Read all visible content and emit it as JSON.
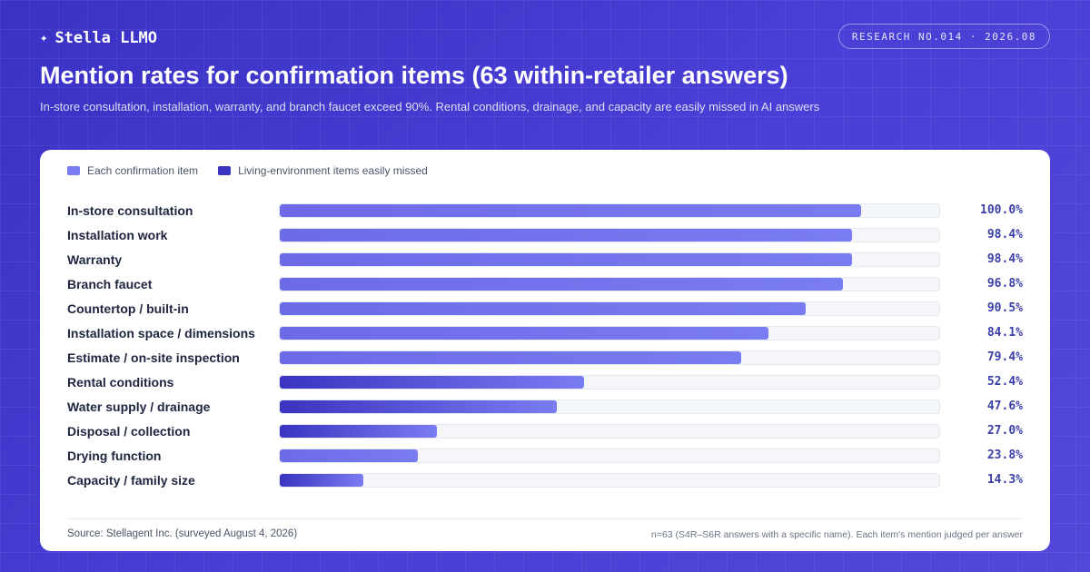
{
  "brand": {
    "spark": "✦",
    "name": "Stella LLMO"
  },
  "badge": "RESEARCH NO.014 · 2026.08",
  "title": "Mention rates for confirmation items (63 within-retailer answers)",
  "subtitle": "In-store consultation, installation, warranty, and branch faucet exceed 90%. Rental conditions, drainage, and capacity are easily missed in AI answers",
  "colors": {
    "normal": "#7a7cf2",
    "missed": "#3a34c0",
    "value_text": "#3a3fa8"
  },
  "legend": [
    {
      "label": "Each confirmation item",
      "color": "#7a7cf2"
    },
    {
      "label": "Living-environment items easily missed",
      "color": "#3a34c0"
    }
  ],
  "chart_data": {
    "type": "bar",
    "orientation": "horizontal",
    "xlim": [
      0,
      113.75
    ],
    "grid": false,
    "legend_position": "top-left",
    "categories": [
      "In-store consultation",
      "Installation work",
      "Warranty",
      "Branch faucet",
      "Countertop / built-in",
      "Installation space / dimensions",
      "Estimate / on-site inspection",
      "Rental conditions",
      "Water supply / drainage",
      "Disposal / collection",
      "Drying function",
      "Capacity / family size"
    ],
    "values": [
      100.0,
      98.4,
      98.4,
      96.8,
      90.5,
      84.1,
      79.4,
      52.4,
      47.6,
      27.0,
      23.8,
      14.3
    ],
    "value_labels": [
      "100.0%",
      "98.4%",
      "98.4%",
      "96.8%",
      "90.5%",
      "84.1%",
      "79.4%",
      "52.4%",
      "47.6%",
      "27.0%",
      "23.8%",
      "14.3%"
    ],
    "group": [
      "normal",
      "normal",
      "normal",
      "normal",
      "normal",
      "normal",
      "normal",
      "missed",
      "missed",
      "missed",
      "normal",
      "missed"
    ]
  },
  "footer": {
    "source": "Source: Stellagent Inc. (surveyed August 4, 2026)",
    "note": "n=63 (S4R–S6R answers with a specific name). Each item's mention judged per answer"
  }
}
